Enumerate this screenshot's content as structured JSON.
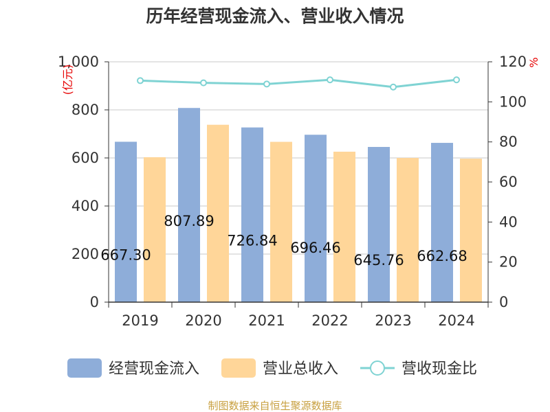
{
  "chart_data": {
    "type": "bar",
    "title": "历年经营现金流入、营业收入情况",
    "categories": [
      "2019",
      "2020",
      "2021",
      "2022",
      "2023",
      "2024"
    ],
    "series": [
      {
        "name": "经营现金流入",
        "kind": "bar",
        "axis": "left",
        "color": "#8eadd9",
        "values": [
          667.3,
          807.89,
          726.84,
          696.46,
          645.76,
          662.68
        ],
        "labels": [
          "667.30",
          "807.89",
          "726.84",
          "696.46",
          "645.76",
          "662.68"
        ]
      },
      {
        "name": "营业总收入",
        "kind": "bar",
        "axis": "left",
        "color": "#ffd699",
        "values": [
          603,
          738,
          667,
          626,
          600,
          597
        ]
      },
      {
        "name": "营收现金比",
        "kind": "line",
        "axis": "right",
        "color": "#7fd3d3",
        "values": [
          110.6,
          109.5,
          108.9,
          111.0,
          107.4,
          111.0
        ]
      }
    ],
    "left_axis": {
      "unit": "(亿元)",
      "ylim": [
        0,
        1000
      ],
      "ticks": [
        0,
        200,
        400,
        600,
        800,
        1000
      ],
      "tick_labels": [
        "0",
        "200",
        "400",
        "600",
        "800",
        "1,000"
      ]
    },
    "right_axis": {
      "unit": "%",
      "ylim": [
        0,
        120
      ],
      "ticks": [
        0,
        20,
        40,
        60,
        80,
        100,
        120
      ],
      "tick_labels": [
        "0",
        "20",
        "40",
        "60",
        "80",
        "100",
        "120"
      ]
    },
    "legend_position": "bottom",
    "source": "制图数据来自恒生聚源数据库"
  }
}
